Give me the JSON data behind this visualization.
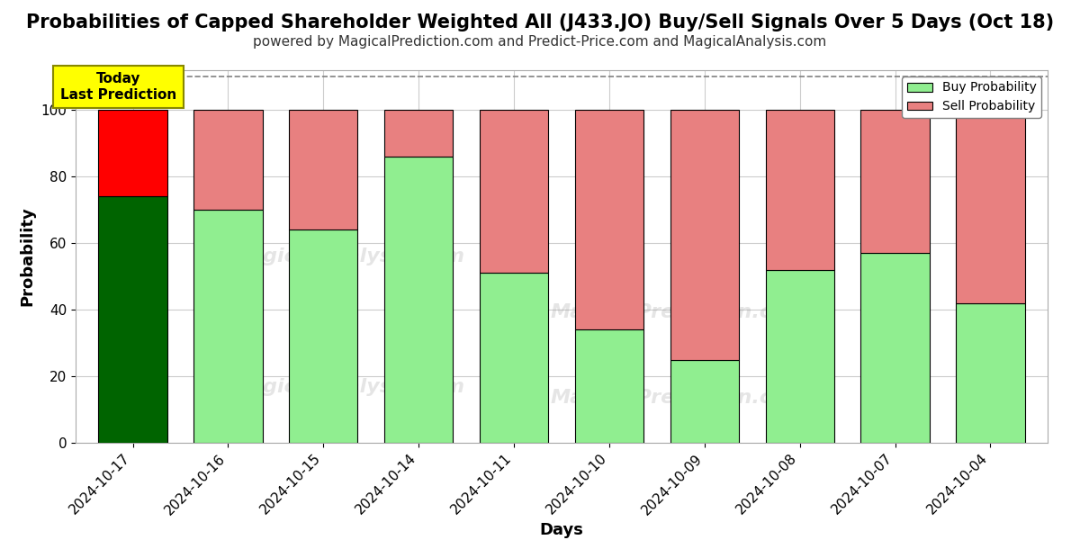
{
  "title": "Probabilities of Capped Shareholder Weighted All (J433.JO) Buy/Sell Signals Over 5 Days (Oct 18)",
  "subtitle": "powered by MagicalPrediction.com and Predict-Price.com and MagicalAnalysis.com",
  "xlabel": "Days",
  "ylabel": "Probability",
  "categories": [
    "2024-10-17",
    "2024-10-16",
    "2024-10-15",
    "2024-10-14",
    "2024-10-11",
    "2024-10-10",
    "2024-10-09",
    "2024-10-08",
    "2024-10-07",
    "2024-10-04"
  ],
  "buy_values": [
    74,
    70,
    64,
    86,
    51,
    34,
    25,
    52,
    57,
    42
  ],
  "sell_values": [
    26,
    30,
    36,
    14,
    49,
    66,
    75,
    48,
    43,
    58
  ],
  "buy_colors": [
    "#006400",
    "#90EE90",
    "#90EE90",
    "#90EE90",
    "#90EE90",
    "#90EE90",
    "#90EE90",
    "#90EE90",
    "#90EE90",
    "#90EE90"
  ],
  "sell_colors": [
    "#FF0000",
    "#E88080",
    "#E88080",
    "#E88080",
    "#E88080",
    "#E88080",
    "#E88080",
    "#E88080",
    "#E88080",
    "#E88080"
  ],
  "legend_buy_color": "#90EE90",
  "legend_sell_color": "#E88080",
  "ylim": [
    0,
    112
  ],
  "dashed_line_y": 110,
  "today_box_text": "Today\nLast Prediction",
  "today_box_color": "#FFFF00",
  "background_color": "#ffffff",
  "bar_edge_color": "#000000",
  "grid_color": "#cccccc",
  "title_fontsize": 15,
  "subtitle_fontsize": 11,
  "label_fontsize": 13,
  "tick_fontsize": 11
}
